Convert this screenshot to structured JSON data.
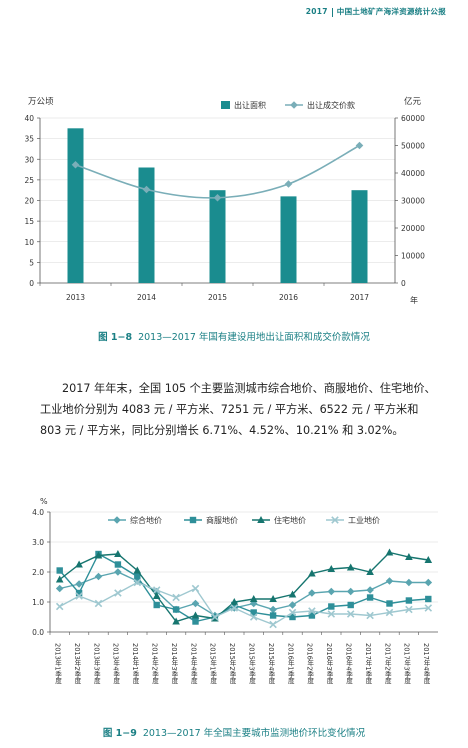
{
  "header": {
    "year": "2017",
    "title": "中国土地矿产海洋资源统计公报"
  },
  "figure1": {
    "number": "图 1−8",
    "caption": "2013—2017 年国有建设用地出让面积和成交价款情况",
    "chart_data": {
      "type": "bar+line",
      "categories": [
        "2013",
        "2014",
        "2015",
        "2016",
        "2017"
      ],
      "x_unit": "年",
      "left_axis": {
        "label": "万公顷",
        "ylim": [
          0,
          40
        ],
        "ticks": [
          "0",
          "5",
          "10",
          "15",
          "20",
          "25",
          "30",
          "35",
          "40"
        ]
      },
      "right_axis": {
        "label": "亿元",
        "ylim": [
          0,
          60000
        ],
        "ticks": [
          "0",
          "10000",
          "20000",
          "30000",
          "40000",
          "50000",
          "60000"
        ]
      },
      "series": [
        {
          "name": "出让面积",
          "type": "bar",
          "axis": "left",
          "color": "#1a8c8f",
          "values": [
            37.5,
            28.0,
            22.5,
            21.0,
            22.5
          ]
        },
        {
          "name": "出让成交价款",
          "type": "line",
          "axis": "right",
          "color": "#7aaeb8",
          "values": [
            43000,
            34000,
            31000,
            36000,
            50000
          ]
        }
      ],
      "legend": "top"
    }
  },
  "paragraph": "2017 年年末，全国 105 个主要监测城市综合地价、商服地价、住宅地价、工业地价分别为 4083 元 / 平方米、7251 元 / 平方米、6522 元 / 平方米和 803 元 / 平方米，同比分别增长 6.71%、4.52%、10.21% 和 3.02%。",
  "figure2": {
    "number": "图 1−9",
    "caption": "2013—2017 年全国主要城市监测地价环比变化情况",
    "chart_data": {
      "type": "line",
      "ylabel": "%",
      "ylim": [
        0,
        4
      ],
      "yticks": [
        "0.0",
        "1.0",
        "2.0",
        "3.0",
        "4.0"
      ],
      "categories": [
        "2013年1季度",
        "2013年2季度",
        "2013年3季度",
        "2013年4季度",
        "2014年1季度",
        "2014年2季度",
        "2014年3季度",
        "2014年4季度",
        "2015年1季度",
        "2015年2季度",
        "2015年3季度",
        "2015年4季度",
        "2016年1季度",
        "2016年2季度",
        "2016年3季度",
        "2016年4季度",
        "2017年1季度",
        "2017年2季度",
        "2017年3季度",
        "2017年4季度"
      ],
      "legend": "top",
      "series": [
        {
          "name": "综合地价",
          "marker": "diamond",
          "color": "#5aa5b0",
          "values": [
            1.45,
            1.6,
            1.85,
            2.0,
            1.7,
            1.35,
            0.75,
            0.95,
            0.55,
            0.8,
            0.95,
            0.75,
            0.9,
            1.3,
            1.35,
            1.35,
            1.4,
            1.7,
            1.65,
            1.65
          ]
        },
        {
          "name": "商服地价",
          "marker": "square",
          "color": "#2e8f99",
          "values": [
            2.05,
            1.3,
            2.6,
            2.25,
            1.85,
            0.9,
            0.75,
            0.35,
            0.5,
            0.9,
            0.65,
            0.55,
            0.5,
            0.55,
            0.85,
            0.9,
            1.15,
            0.95,
            1.05,
            1.1
          ]
        },
        {
          "name": "住宅地价",
          "marker": "triangle",
          "color": "#16756f",
          "values": [
            1.75,
            2.25,
            2.55,
            2.6,
            2.05,
            1.2,
            0.35,
            0.55,
            0.45,
            1.0,
            1.1,
            1.1,
            1.25,
            1.95,
            2.1,
            2.15,
            2.0,
            2.65,
            2.5,
            2.4
          ]
        },
        {
          "name": "工业地价",
          "marker": "x",
          "color": "#9fc8d0",
          "values": [
            0.85,
            1.2,
            0.95,
            1.3,
            1.65,
            1.4,
            1.15,
            1.45,
            0.5,
            0.8,
            0.5,
            0.25,
            0.65,
            0.7,
            0.6,
            0.6,
            0.55,
            0.65,
            0.75,
            0.8
          ]
        }
      ]
    }
  }
}
